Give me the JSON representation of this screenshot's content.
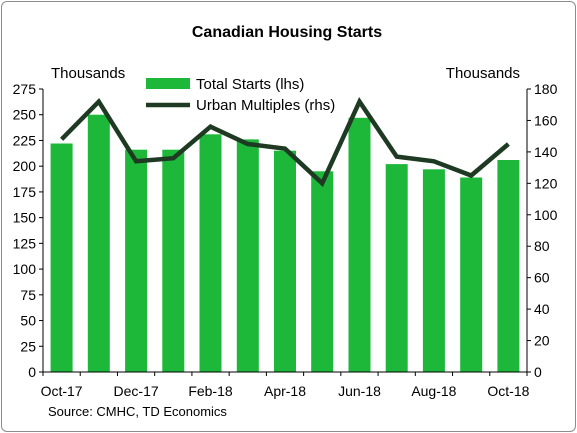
{
  "chart_data": {
    "type": "bar+line",
    "title": "Canadian Housing Starts",
    "source": "Source: CMHC, TD Economics",
    "left_axis": {
      "unit": "Thousands",
      "ylim": [
        0,
        275
      ],
      "ticks": [
        0,
        25,
        50,
        75,
        100,
        125,
        150,
        175,
        200,
        225,
        250,
        275
      ]
    },
    "right_axis": {
      "unit": "Thousands",
      "ylim": [
        0,
        180
      ],
      "ticks": [
        0,
        20,
        40,
        60,
        80,
        100,
        120,
        140,
        160,
        180
      ]
    },
    "categories": [
      "Oct-17",
      "Nov-17",
      "Dec-17",
      "Jan-18",
      "Feb-18",
      "Mar-18",
      "Apr-18",
      "May-18",
      "Jun-18",
      "Jul-18",
      "Aug-18",
      "Sep-18",
      "Oct-18"
    ],
    "x_tick_labels": [
      "Oct-17",
      "Dec-17",
      "Feb-18",
      "Apr-18",
      "Jun-18",
      "Aug-18",
      "Oct-18"
    ],
    "series": [
      {
        "name": "Total Starts (lhs)",
        "type": "bar",
        "axis": "left",
        "color": "#1db83a",
        "values": [
          222,
          250,
          216,
          216,
          231,
          226,
          215,
          195,
          247,
          202,
          197,
          189,
          206
        ]
      },
      {
        "name": "Urban Multiples (rhs)",
        "type": "line",
        "axis": "right",
        "color": "#1e3a23",
        "values": [
          148,
          172,
          134,
          136,
          156,
          145,
          142,
          120,
          172,
          137,
          134,
          125,
          145
        ]
      }
    ],
    "legend_position": "top-left",
    "grid": false
  }
}
